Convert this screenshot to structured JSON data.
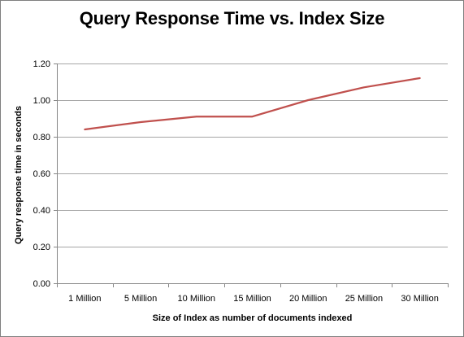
{
  "chart_data": {
    "type": "line",
    "title": "Query Response Time vs. Index Size",
    "xlabel": "Size of Index as number of documents indexed",
    "ylabel": "Query response time in seconds",
    "categories": [
      "1 Million",
      "5 Million",
      "10 Million",
      "15 Million",
      "20 Million",
      "25 Million",
      "30 Million"
    ],
    "series": [
      {
        "values": [
          0.84,
          0.88,
          0.91,
          0.91,
          1.0,
          1.07,
          1.12
        ],
        "color": "#c0504d"
      }
    ],
    "ylim": [
      0,
      1.2
    ],
    "yticks": [
      "0.00",
      "0.20",
      "0.40",
      "0.60",
      "0.80",
      "1.00",
      "1.20"
    ],
    "ytick_values": [
      0,
      0.2,
      0.4,
      0.6,
      0.8,
      1.0,
      1.2
    ],
    "grid": true,
    "legend": "none",
    "gridline_color": "#a6a6a6",
    "axis_color": "#868686"
  }
}
